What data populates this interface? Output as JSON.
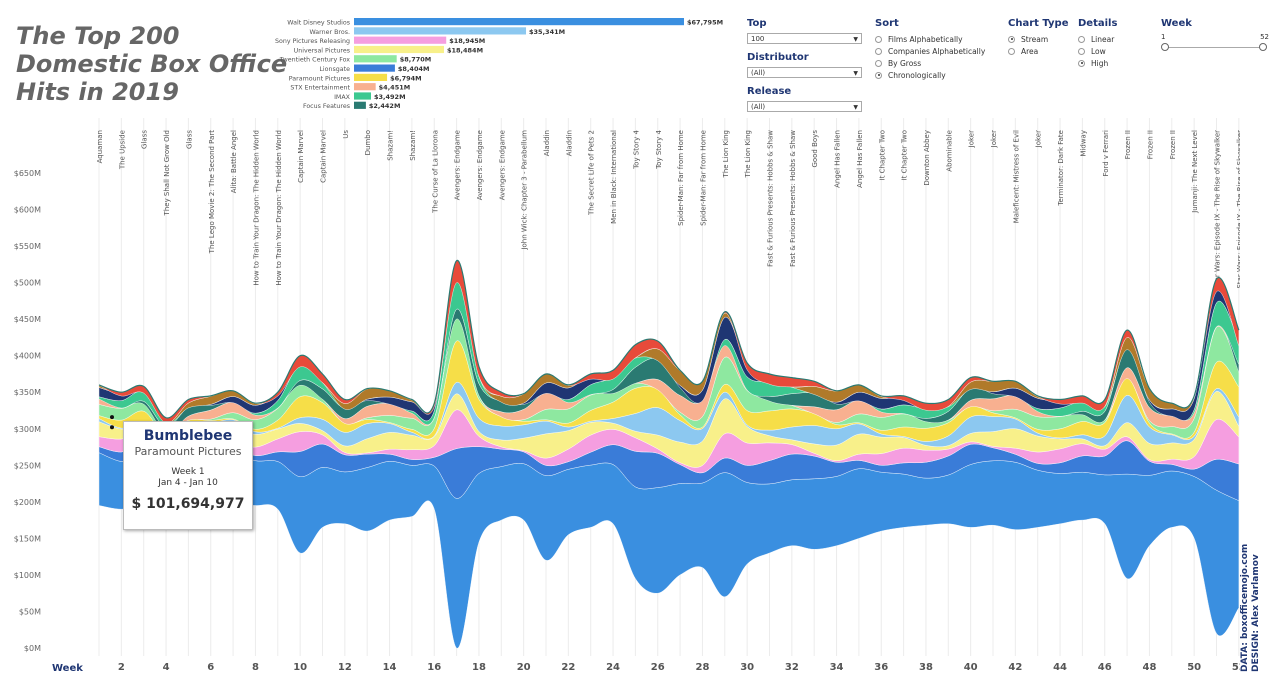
{
  "title": {
    "line1": "The Top 200",
    "line2": "Domestic Box Office",
    "line3": "Hits in 2019"
  },
  "distributors": [
    {
      "name": "Walt Disney Studios",
      "label": "$67,795M",
      "value": 67795,
      "color": "#3a8fe0"
    },
    {
      "name": "Warner Bros.",
      "label": "$35,341M",
      "value": 35341,
      "color": "#8cc8f0"
    },
    {
      "name": "Sony Pictures Releasing",
      "label": "$18,945M",
      "value": 18945,
      "color": "#f59ee0"
    },
    {
      "name": "Universal Pictures",
      "label": "$18,484M",
      "value": 18484,
      "color": "#f8f08a"
    },
    {
      "name": "Twentieth Century Fox",
      "label": "$8,770M",
      "value": 8770,
      "color": "#8ee8a0"
    },
    {
      "name": "Lionsgate",
      "label": "$8,404M",
      "value": 8404,
      "color": "#3a7cd8"
    },
    {
      "name": "Paramount Pictures",
      "label": "$6,794M",
      "value": 6794,
      "color": "#f6de48"
    },
    {
      "name": "STX Entertainment",
      "label": "$4,451M",
      "value": 4451,
      "color": "#f8b090"
    },
    {
      "name": "IMAX",
      "label": "$3,492M",
      "value": 3492,
      "color": "#3cc890"
    },
    {
      "name": "Focus Features",
      "label": "$2,442M",
      "value": 2442,
      "color": "#2a7a72"
    }
  ],
  "controls": {
    "top": {
      "label": "Top",
      "value": "100"
    },
    "distributor": {
      "label": "Distributor",
      "value": "(All)"
    },
    "release": {
      "label": "Release",
      "value": "(All)"
    },
    "sort": {
      "label": "Sort",
      "options": [
        "Films Alphabetically",
        "Companies Alphabetically",
        "By Gross",
        "Chronologically"
      ],
      "selected": 3
    },
    "chart_type": {
      "label": "Chart Type",
      "options": [
        "Stream",
        "Area"
      ],
      "selected": 0
    },
    "details": {
      "label": "Details",
      "options": [
        "Linear",
        "Low",
        "High"
      ],
      "selected": 2
    },
    "week": {
      "label": "Week",
      "min": "1",
      "max": "52",
      "range": [
        1,
        52
      ]
    }
  },
  "tooltip": {
    "film": "Bumblebee",
    "distributor": "Paramount Pictures",
    "week": "Week 1",
    "dates": "Jan 4 - Jan 10",
    "gross": "$ 101,694,977"
  },
  "credits": {
    "line1": "DATA: boxofficemojo.com",
    "line2": "DESIGN: Alex Varlamov"
  },
  "chart_data": {
    "type": "area",
    "subtype": "streamgraph",
    "xlabel": "Week",
    "x_ticks": [
      2,
      4,
      6,
      8,
      10,
      12,
      14,
      16,
      18,
      20,
      22,
      24,
      26,
      28,
      30,
      32,
      34,
      36,
      38,
      40,
      42,
      44,
      46,
      48,
      50,
      52
    ],
    "y_ticks": [
      "$0M",
      "$50M",
      "$100M",
      "$150M",
      "$200M",
      "$250M",
      "$300M",
      "$350M",
      "$400M",
      "$450M",
      "$500M",
      "$550M",
      "$600M",
      "$650M"
    ],
    "ylim": [
      0,
      650
    ],
    "weeks": [
      1,
      2,
      3,
      4,
      5,
      6,
      7,
      8,
      9,
      10,
      11,
      12,
      13,
      14,
      15,
      16,
      17,
      18,
      19,
      20,
      21,
      22,
      23,
      24,
      25,
      26,
      27,
      28,
      29,
      30,
      31,
      32,
      33,
      34,
      35,
      36,
      37,
      38,
      39,
      40,
      41,
      42,
      43,
      44,
      45,
      46,
      47,
      48,
      49,
      50,
      51,
      52
    ],
    "stream_top": [
      360,
      350,
      358,
      315,
      340,
      345,
      352,
      335,
      350,
      400,
      375,
      340,
      355,
      352,
      340,
      335,
      530,
      385,
      350,
      348,
      375,
      360,
      375,
      380,
      415,
      420,
      380,
      365,
      460,
      390,
      375,
      370,
      365,
      352,
      360,
      345,
      345,
      335,
      340,
      370,
      365,
      365,
      345,
      340,
      345,
      340,
      435,
      355,
      335,
      345,
      505,
      435
    ],
    "stream_bottom": [
      195,
      190,
      195,
      190,
      192,
      190,
      195,
      195,
      190,
      130,
      165,
      170,
      160,
      175,
      180,
      190,
      0,
      145,
      175,
      175,
      120,
      155,
      165,
      170,
      95,
      75,
      100,
      110,
      70,
      115,
      130,
      140,
      135,
      140,
      150,
      160,
      165,
      168,
      170,
      165,
      168,
      162,
      165,
      170,
      175,
      170,
      95,
      140,
      165,
      150,
      20,
      55
    ],
    "film_labels": [
      {
        "week": 1,
        "film": "Aquaman"
      },
      {
        "week": 2,
        "film": "The Upside"
      },
      {
        "week": 3,
        "film": "Glass"
      },
      {
        "week": 4,
        "film": "They Shall Not Grow Old"
      },
      {
        "week": 5,
        "film": "Glass"
      },
      {
        "week": 6,
        "film": "The Lego Movie 2: The Second Part"
      },
      {
        "week": 7,
        "film": "Alita: Battle Angel"
      },
      {
        "week": 8,
        "film": "How to Train Your Dragon: The Hidden World"
      },
      {
        "week": 9,
        "film": "How to Train Your Dragon: The Hidden World"
      },
      {
        "week": 10,
        "film": "Captain Marvel"
      },
      {
        "week": 11,
        "film": "Captain Marvel"
      },
      {
        "week": 12,
        "film": "Us"
      },
      {
        "week": 13,
        "film": "Dumbo"
      },
      {
        "week": 14,
        "film": "Shazam!"
      },
      {
        "week": 15,
        "film": "Shazam!"
      },
      {
        "week": 16,
        "film": "The Curse of La Llorona"
      },
      {
        "week": 17,
        "film": "Avengers: Endgame"
      },
      {
        "week": 18,
        "film": "Avengers: Endgame"
      },
      {
        "week": 19,
        "film": "Avengers: Endgame"
      },
      {
        "week": 20,
        "film": "John Wick: Chapter 3 - Parabellum"
      },
      {
        "week": 21,
        "film": "Aladdin"
      },
      {
        "week": 22,
        "film": "Aladdin"
      },
      {
        "week": 23,
        "film": "The Secret Life of Pets 2"
      },
      {
        "week": 24,
        "film": "Men in Black: International"
      },
      {
        "week": 25,
        "film": "Toy Story 4"
      },
      {
        "week": 26,
        "film": "Toy Story 4"
      },
      {
        "week": 27,
        "film": "Spider-Man: Far from Home"
      },
      {
        "week": 28,
        "film": "Spider-Man: Far from Home"
      },
      {
        "week": 29,
        "film": "The Lion King"
      },
      {
        "week": 30,
        "film": "The Lion King"
      },
      {
        "week": 31,
        "film": "Fast & Furious Presents: Hobbs & Shaw"
      },
      {
        "week": 32,
        "film": "Fast & Furious Presents: Hobbs & Shaw"
      },
      {
        "week": 33,
        "film": "Good Boys"
      },
      {
        "week": 34,
        "film": "Angel Has Fallen"
      },
      {
        "week": 35,
        "film": "Angel Has Fallen"
      },
      {
        "week": 36,
        "film": "It Chapter Two"
      },
      {
        "week": 37,
        "film": "It Chapter Two"
      },
      {
        "week": 38,
        "film": "Downton Abbey"
      },
      {
        "week": 39,
        "film": "Abominable"
      },
      {
        "week": 40,
        "film": "Joker"
      },
      {
        "week": 41,
        "film": "Joker"
      },
      {
        "week": 42,
        "film": "Maleficent: Mistress of Evil"
      },
      {
        "week": 43,
        "film": "Joker"
      },
      {
        "week": 44,
        "film": "Terminator: Dark Fate"
      },
      {
        "week": 45,
        "film": "Midway"
      },
      {
        "week": 46,
        "film": "Ford v Ferrari"
      },
      {
        "week": 47,
        "film": "Frozen II"
      },
      {
        "week": 48,
        "film": "Frozen II"
      },
      {
        "week": 49,
        "film": "Frozen II"
      },
      {
        "week": 50,
        "film": "Jumanji: The Next Level"
      },
      {
        "week": 51,
        "film": "Star Wars: Episode IX - The Rise of Skywalker"
      },
      {
        "week": 52,
        "film": "Star Wars: Episode IX - The Rise of Skywalker"
      }
    ],
    "palette": [
      "#3a8fe0",
      "#8cc8f0",
      "#f59ee0",
      "#f8f08a",
      "#8ee8a0",
      "#3a7cd8",
      "#f6de48",
      "#f8b090",
      "#3cc890",
      "#2a7a72",
      "#1f3673",
      "#b07a2a",
      "#e84a3a"
    ]
  }
}
